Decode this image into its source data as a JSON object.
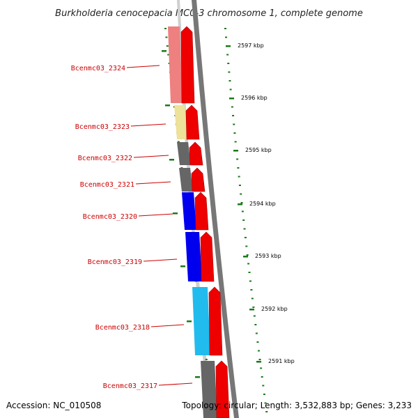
{
  "title": "Burkholderia cenocepacia MC0-3 chromosome 1, complete genome",
  "footer": {
    "accession": "Accession: NC_010508",
    "topology": "Topology: circular; Length: 3,532,883 bp; Genes: 3,233"
  },
  "colors": {
    "gene_label": "#cc0000",
    "arrow": "#ee0000",
    "backbone": "#777777",
    "tick": "#1a7a1a"
  },
  "genes": [
    {
      "id": "Bcenmc03_2324",
      "color": "#ee8080"
    },
    {
      "id": "Bcenmc03_2323",
      "color": "#eee199"
    },
    {
      "id": "Bcenmc03_2322",
      "color": "#666666"
    },
    {
      "id": "Bcenmc03_2321",
      "color": "#666666"
    },
    {
      "id": "Bcenmc03_2320",
      "color": "#0000ee"
    },
    {
      "id": "Bcenmc03_2319",
      "color": "#0000ee"
    },
    {
      "id": "Bcenmc03_2318",
      "color": "#22bbee"
    },
    {
      "id": "Bcenmc03_2317",
      "color": "#666666"
    }
  ],
  "kbp_labels": [
    "2597 kbp",
    "2596 kbp",
    "2595 kbp",
    "2594 kbp",
    "2593 kbp",
    "2592 kbp",
    "2591 kbp"
  ]
}
